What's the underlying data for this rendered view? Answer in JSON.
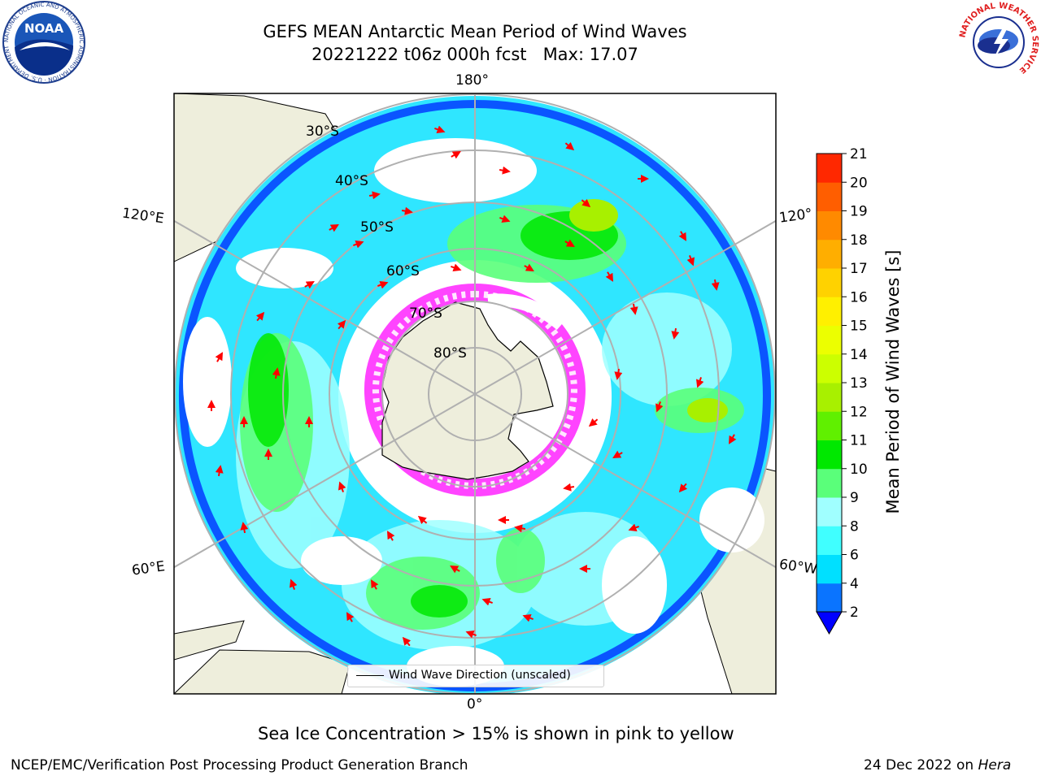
{
  "title": {
    "line1": "GEFS MEAN Antarctic Mean Period of Wind Waves",
    "line2": "20221222 t06z 000h fcst   Max: 17.07"
  },
  "map": {
    "projection": "south-polar-stereographic",
    "longitude_labels": {
      "top": "180°",
      "bottom": "0°",
      "left_upper": "120°E",
      "left_lower": "60°E",
      "right_upper": "120°",
      "right_lower": "60°W"
    },
    "latitude_labels": [
      "30°S",
      "40°S",
      "50°S",
      "60°S",
      "70°S",
      "80°S"
    ],
    "colors": {
      "land": "#eeeedc",
      "coast": "#000000",
      "grid": "#b0b0b0",
      "arrows": "#ff0000"
    },
    "legend": "Wind Wave Direction (unscaled)"
  },
  "colorbar": {
    "label": "Mean Period of Wind Waves [s]",
    "ticks": [
      "2",
      "4",
      "6",
      "8",
      "9",
      "10",
      "11",
      "12",
      "13",
      "14",
      "15",
      "16",
      "17",
      "18",
      "19",
      "20",
      "21"
    ],
    "colors": [
      "#0a74ff",
      "#00e0ff",
      "#40ffff",
      "#a0ffff",
      "#5aff7a",
      "#00e800",
      "#60f000",
      "#a8f000",
      "#ccff00",
      "#ecff00",
      "#fff000",
      "#ffd200",
      "#ffae00",
      "#ff8a00",
      "#ff5e00",
      "#ff2800"
    ],
    "under_color": "#0000ff",
    "over_color": "#ff0000"
  },
  "note": "Sea Ice Concentration > 15% is shown in pink to yellow",
  "footer": {
    "left": "NCEP/EMC/Verification Post Processing Product Generation Branch",
    "right_prefix": "24 Dec 2022 on ",
    "right_machine": "Hera"
  },
  "logos": {
    "noaa_text": "NOAA",
    "noaa_ring": "NATIONAL OCEANIC AND ATMOSPHERIC ADMINISTRATION · U.S. DEPARTMENT OF COMMERCE",
    "nws_ring": "NATIONAL WEATHER SERVICE"
  }
}
